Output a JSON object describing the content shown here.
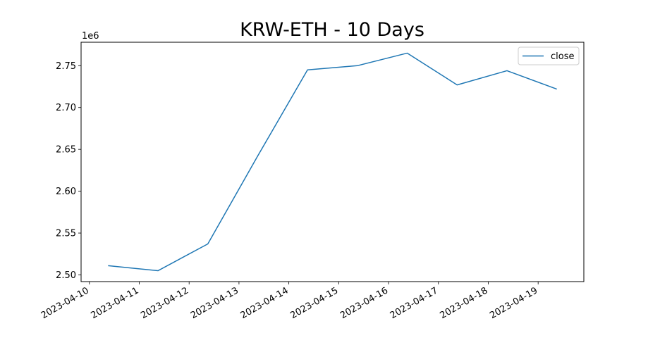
{
  "chart_data": {
    "type": "line",
    "title": "KRW-ETH - 10 Days",
    "xlabel": "",
    "ylabel": "",
    "y_scale_label": "1e6",
    "x": [
      "2023-04-10 09:00",
      "2023-04-11 09:00",
      "2023-04-12 09:00",
      "2023-04-13 09:00",
      "2023-04-14 09:00",
      "2023-04-15 09:00",
      "2023-04-16 09:00",
      "2023-04-17 09:00",
      "2023-04-18 09:00",
      "2023-04-19 09:00"
    ],
    "series": [
      {
        "name": "close",
        "color": "#1f77b4",
        "values": [
          2511000,
          2505000,
          2537000,
          2642000,
          2745000,
          2750000,
          2765000,
          2727000,
          2744000,
          2722000
        ]
      }
    ],
    "xlim": [
      "2023-04-09 20:00",
      "2023-04-19 22:00"
    ],
    "ylim": [
      2492000,
      2778000
    ],
    "x_ticks": [
      "2023-04-10",
      "2023-04-11",
      "2023-04-12",
      "2023-04-13",
      "2023-04-14",
      "2023-04-15",
      "2023-04-16",
      "2023-04-17",
      "2023-04-18",
      "2023-04-19"
    ],
    "y_ticks": [
      2500000,
      2550000,
      2600000,
      2650000,
      2700000,
      2750000
    ],
    "y_tick_labels": [
      "2.50",
      "2.55",
      "2.60",
      "2.65",
      "2.70",
      "2.75"
    ],
    "grid": false,
    "legend_position": "top-right"
  }
}
